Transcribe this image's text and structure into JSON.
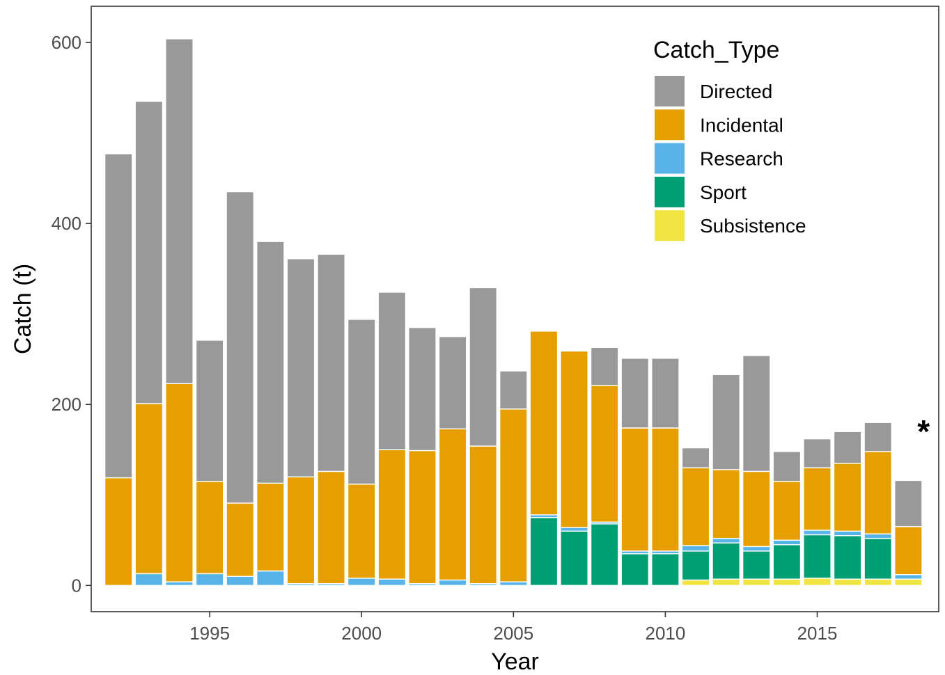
{
  "chart_data": {
    "type": "bar",
    "stacked": true,
    "x": [
      1992,
      1993,
      1994,
      1995,
      1996,
      1997,
      1998,
      1999,
      2000,
      2001,
      2002,
      2003,
      2004,
      2005,
      2006,
      2007,
      2008,
      2009,
      2010,
      2011,
      2012,
      2013,
      2014,
      2015,
      2016,
      2017,
      2018
    ],
    "series": [
      {
        "name": "Subsistence",
        "color": "#F0E442",
        "values": [
          0,
          0,
          0,
          0,
          0,
          0,
          0,
          0,
          0,
          0,
          0,
          0,
          0,
          0,
          0,
          0,
          0,
          0,
          0,
          6,
          7,
          7,
          7,
          8,
          7,
          7,
          7
        ]
      },
      {
        "name": "Sport",
        "color": "#009E73",
        "values": [
          0,
          0,
          0,
          0,
          0,
          0,
          0,
          0,
          0,
          0,
          0,
          0,
          0,
          0,
          75,
          60,
          68,
          35,
          35,
          32,
          40,
          31,
          38,
          48,
          48,
          45,
          0
        ]
      },
      {
        "name": "Research",
        "color": "#56B4E9",
        "values": [
          0,
          13,
          4,
          13,
          10,
          16,
          2,
          2,
          8,
          7,
          2,
          6,
          2,
          4,
          3,
          4,
          2,
          3,
          3,
          6,
          5,
          5,
          5,
          5,
          5,
          5,
          5
        ]
      },
      {
        "name": "Incidental",
        "color": "#E69F00",
        "values": [
          119,
          188,
          219,
          102,
          81,
          97,
          118,
          124,
          104,
          143,
          147,
          167,
          152,
          191,
          203,
          195,
          151,
          136,
          136,
          86,
          76,
          83,
          65,
          69,
          75,
          91,
          53
        ]
      },
      {
        "name": "Directed",
        "color": "#999999",
        "values": [
          358,
          334,
          381,
          156,
          344,
          267,
          241,
          240,
          182,
          174,
          136,
          102,
          175,
          42,
          0,
          0,
          42,
          77,
          77,
          22,
          105,
          128,
          33,
          32,
          35,
          32,
          51
        ]
      }
    ],
    "legend_order": [
      "Directed",
      "Incidental",
      "Research",
      "Sport",
      "Subsistence"
    ],
    "legend_title": "Catch_Type",
    "legend_position": "top-right",
    "xlabel": "Year",
    "ylabel": "Catch (t)",
    "x_ticks": [
      1995,
      2000,
      2005,
      2010,
      2015
    ],
    "y_ticks": [
      0,
      200,
      400,
      600
    ],
    "xlim": [
      1991.1,
      2019.0
    ],
    "ylim": [
      -29,
      640
    ],
    "grid": false,
    "annotation": {
      "text": "*",
      "x": 2018.5,
      "y": 158
    }
  }
}
